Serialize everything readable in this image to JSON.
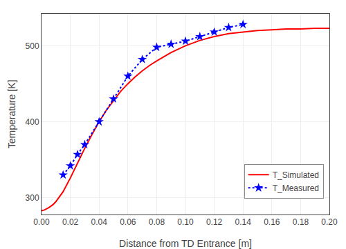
{
  "chart_data": {
    "type": "line",
    "xlabel": "Distance from TD Entrance [m]",
    "ylabel": "Temperature [K]",
    "series": [
      {
        "name": "T_Simulated",
        "color": "#ff0000",
        "line_style": "solid",
        "x": [
          0.0,
          0.002,
          0.005,
          0.008,
          0.01,
          0.015,
          0.02,
          0.025,
          0.03,
          0.035,
          0.04,
          0.045,
          0.05,
          0.055,
          0.06,
          0.065,
          0.07,
          0.075,
          0.08,
          0.09,
          0.1,
          0.11,
          0.12,
          0.13,
          0.14,
          0.15,
          0.16,
          0.17,
          0.18,
          0.19,
          0.2
        ],
        "values": [
          283,
          284,
          287,
          291,
          295,
          308,
          326,
          346,
          365,
          383,
          400,
          415,
          428,
          440,
          450,
          459,
          467,
          474,
          480,
          491,
          500,
          507,
          512,
          516,
          518,
          520,
          521,
          522,
          522,
          523,
          523
        ]
      },
      {
        "name": "T_Measured",
        "color": "#0000ff",
        "line_style": "dotted",
        "marker": "star",
        "x": [
          0.015,
          0.02,
          0.025,
          0.03,
          0.04,
          0.05,
          0.06,
          0.07,
          0.08,
          0.09,
          0.1,
          0.11,
          0.12,
          0.13,
          0.14
        ],
        "values": [
          330,
          342,
          357,
          370,
          400,
          430,
          460,
          482,
          498,
          502,
          506,
          512,
          518,
          524,
          528
        ]
      }
    ],
    "xlim": [
      0.0,
      0.2
    ],
    "ylim": [
      278,
      542
    ],
    "xticks": [
      {
        "value": 0.0,
        "label": "0.00"
      },
      0.02,
      0.04,
      0.06,
      0.08,
      {
        "value": 0.1,
        "label": "0.10"
      },
      0.12,
      0.14,
      0.16,
      0.18,
      {
        "value": 0.2,
        "label": "0.20"
      }
    ],
    "yticks": [
      300,
      400,
      500
    ],
    "grid": true,
    "legend": "lower right"
  }
}
